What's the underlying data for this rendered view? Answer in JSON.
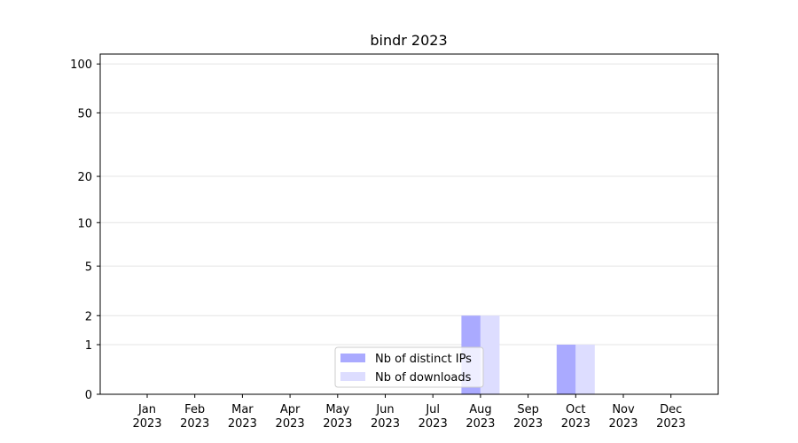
{
  "chart_data": {
    "type": "bar",
    "title": "bindr 2023",
    "categories": [
      "Jan 2023",
      "Feb 2023",
      "Mar 2023",
      "Apr 2023",
      "May 2023",
      "Jun 2023",
      "Jul 2023",
      "Aug 2023",
      "Sep 2023",
      "Oct 2023",
      "Nov 2023",
      "Dec 2023"
    ],
    "series": [
      {
        "name": "Nb of distinct IPs",
        "color": "#aaaaff",
        "values": [
          0,
          0,
          0,
          0,
          0,
          0,
          0,
          2,
          0,
          1,
          0,
          0
        ]
      },
      {
        "name": "Nb of downloads",
        "color": "#ddddff",
        "values": [
          0,
          0,
          0,
          0,
          0,
          0,
          0,
          2,
          0,
          1,
          0,
          0
        ]
      }
    ],
    "yscale": "log1p",
    "ylim": [
      0,
      115
    ],
    "yticks": [
      0,
      1,
      2,
      5,
      10,
      20,
      50,
      100
    ],
    "grid": true,
    "legend": "lower center"
  }
}
